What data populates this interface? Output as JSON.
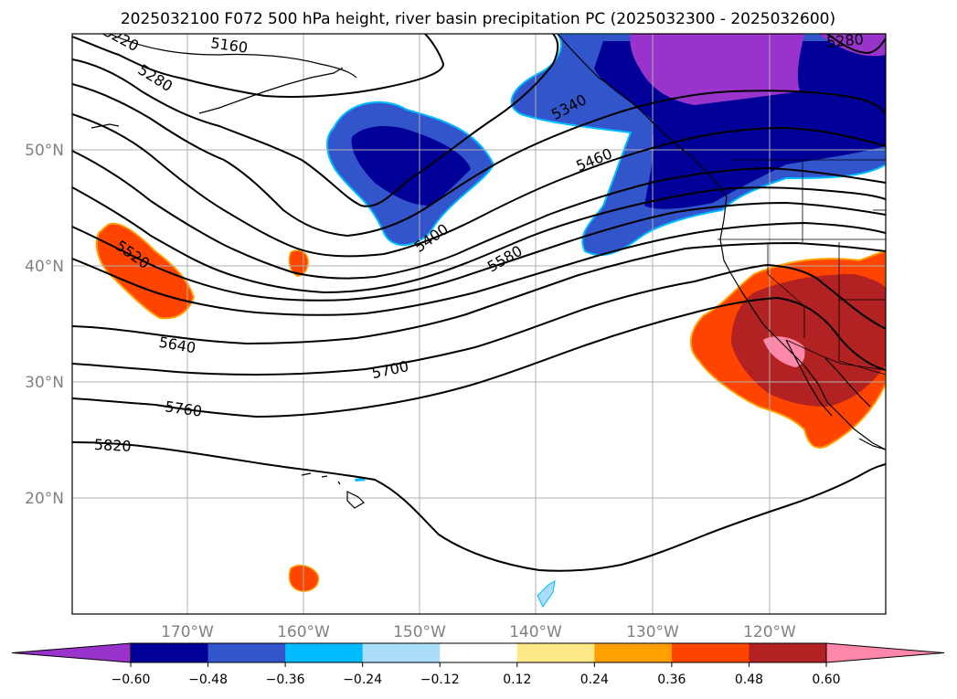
{
  "title": "2025032100 F072 500 hPa height, river basin precipitation PC (2025032300 - 2025032600)",
  "map": {
    "lon_range": [
      -180,
      -110
    ],
    "lat_range": [
      10,
      60
    ],
    "lon_ticks": [
      "170°W",
      "160°W",
      "150°W",
      "140°W",
      "130°W",
      "120°W"
    ],
    "lat_ticks": [
      "50°N",
      "40°N",
      "30°N",
      "20°N"
    ],
    "grid": true
  },
  "contour_labels": [
    "5160",
    "5280",
    "5220",
    "5340",
    "5460",
    "5400",
    "5520",
    "5580",
    "5640",
    "5700",
    "5760",
    "5820",
    "5280"
  ],
  "colorbar": {
    "ticks": [
      "−0.60",
      "−0.48",
      "−0.36",
      "−0.24",
      "−0.12",
      "0.12",
      "0.24",
      "0.36",
      "0.48",
      "0.60"
    ],
    "colors": [
      "#9933cc",
      "#000099",
      "#3355cc",
      "#00bbff",
      "#aaddf8",
      "#ffffff",
      "#ffe888",
      "#ffa000",
      "#ff4400",
      "#b22222",
      "#ff88aa",
      "#ff88aa"
    ],
    "extend": "both"
  }
}
